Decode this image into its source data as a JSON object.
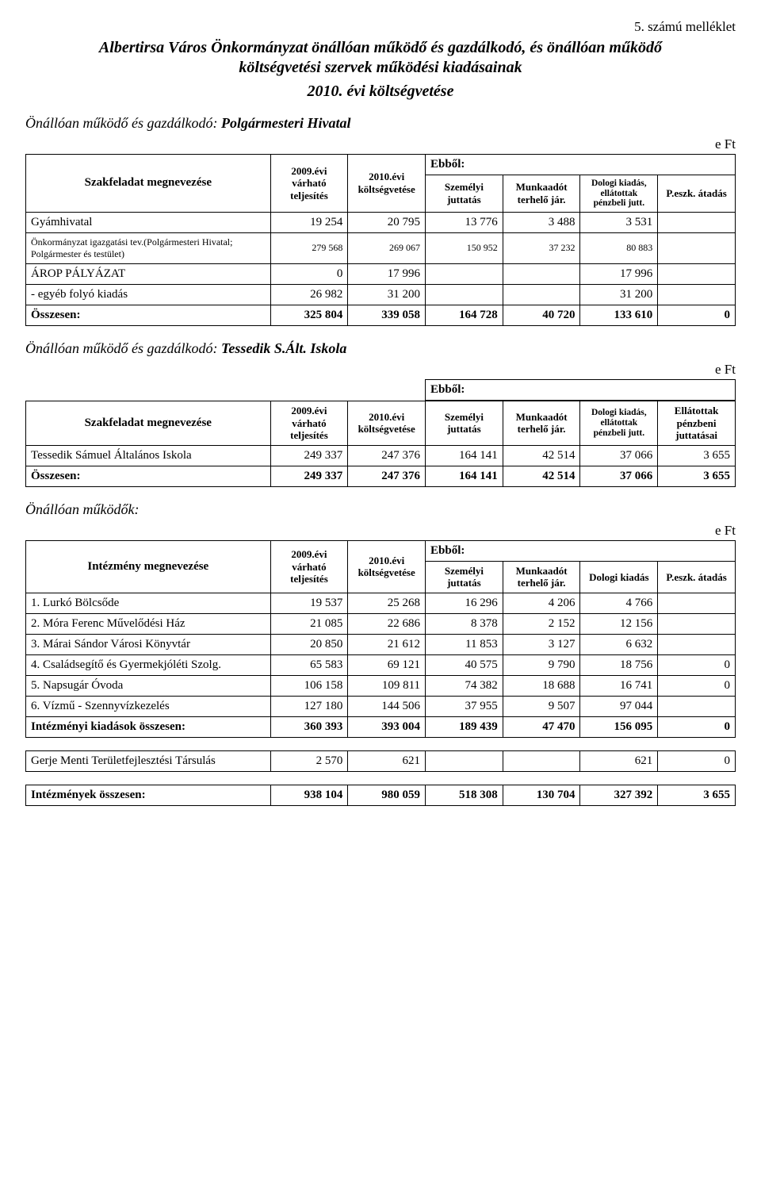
{
  "annex": "5. számú melléklet",
  "main_title": "Albertirsa Város Önkormányzat önállóan működő és gazdálkodó, és önállóan működő költségvetési szervek működési kiadásainak",
  "subtitle": "2010. évi költségvetése",
  "unit_label": "e Ft",
  "headers": {
    "task_label": "Szakfeladat megnevezése",
    "inst_label": "Intézmény megnevezése",
    "prev": "2009.évi várható teljesítés",
    "budget": "2010.évi költségvetése",
    "ebbol": "Ebből:",
    "personal": "Személyi juttatás",
    "employer": "Munkaadót terhelő jár.",
    "dologi_long": "Dologi kiadás, ellátottak pénzbeli jutt.",
    "dologi_short": "Dologi kiadás",
    "peszk": "P.eszk. átadás",
    "ellatottak": "Ellátottak pénzbeni juttatásai"
  },
  "section1": {
    "label_prefix": "Önállóan működő és gazdálkodó: ",
    "label_strong": "Polgármesteri Hivatal",
    "rows": [
      {
        "name": "Gyámhivatal",
        "prev": "19 254",
        "budget": "20 795",
        "c1": "13 776",
        "c2": "3 488",
        "c3": "3 531",
        "c4": ""
      },
      {
        "name": "Önkormányzat igazgatási tev.(Polgármesteri Hivatal; Polgármester és testület)",
        "prev": "279 568",
        "budget": "269 067",
        "c1": "150 952",
        "c2": "37 232",
        "c3": "80 883",
        "c4": "",
        "small": true
      },
      {
        "name": "ÁROP PÁLYÁZAT",
        "prev": "0",
        "budget": "17 996",
        "c1": "",
        "c2": "",
        "c3": "17 996",
        "c4": ""
      },
      {
        "name": " - egyéb folyó kiadás",
        "prev": "26 982",
        "budget": "31 200",
        "c1": "",
        "c2": "",
        "c3": "31 200",
        "c4": ""
      }
    ],
    "total": {
      "name": "Összesen:",
      "prev": "325 804",
      "budget": "339 058",
      "c1": "164 728",
      "c2": "40 720",
      "c3": "133 610",
      "c4": "0"
    }
  },
  "section2": {
    "label_prefix": "Önállóan működő és gazdálkodó: ",
    "label_strong": "Tessedik S.Ált. Iskola",
    "rows": [
      {
        "name": "Tessedik Sámuel Általános Iskola",
        "prev": "249 337",
        "budget": "247 376",
        "c1": "164 141",
        "c2": "42 514",
        "c3": "37 066",
        "c4": "3 655"
      }
    ],
    "total": {
      "name": "Összesen:",
      "prev": "249 337",
      "budget": "247 376",
      "c1": "164 141",
      "c2": "42 514",
      "c3": "37 066",
      "c4": "3 655"
    }
  },
  "section3": {
    "label": "Önállóan működők:",
    "rows": [
      {
        "name": "1. Lurkó Bölcsőde",
        "prev": "19 537",
        "budget": "25 268",
        "c1": "16 296",
        "c2": "4 206",
        "c3": "4 766",
        "c4": ""
      },
      {
        "name": "2. Móra Ferenc Művelődési Ház",
        "prev": "21 085",
        "budget": "22 686",
        "c1": "8 378",
        "c2": "2 152",
        "c3": "12 156",
        "c4": ""
      },
      {
        "name": "3. Márai Sándor Városi Könyvtár",
        "prev": "20 850",
        "budget": "21 612",
        "c1": "11 853",
        "c2": "3 127",
        "c3": "6 632",
        "c4": ""
      },
      {
        "name": "4. Családsegítő és Gyermekjóléti Szolg.",
        "prev": "65 583",
        "budget": "69 121",
        "c1": "40 575",
        "c2": "9 790",
        "c3": "18 756",
        "c4": "0"
      },
      {
        "name": "5. Napsugár Óvoda",
        "prev": "106 158",
        "budget": "109 811",
        "c1": "74 382",
        "c2": "18 688",
        "c3": "16 741",
        "c4": "0"
      },
      {
        "name": "6. Vízmű  - Szennyvízkezelés",
        "prev": "127 180",
        "budget": "144 506",
        "c1": "37 955",
        "c2": "9 507",
        "c3": "97 044",
        "c4": ""
      }
    ],
    "total": {
      "name": "Intézményi kiadások összesen:",
      "prev": "360 393",
      "budget": "393 004",
      "c1": "189 439",
      "c2": "47 470",
      "c3": "156 095",
      "c4": "0"
    }
  },
  "section4": {
    "rows": [
      {
        "name": "Gerje Menti Területfejlesztési Társulás",
        "prev": "2 570",
        "budget": "621",
        "c1": "",
        "c2": "",
        "c3": "621",
        "c4": "0"
      }
    ]
  },
  "grand_total": {
    "name": "Intézmények összesen:",
    "prev": "938 104",
    "budget": "980 059",
    "c1": "518 308",
    "c2": "130 704",
    "c3": "327 392",
    "c4": "3 655"
  }
}
